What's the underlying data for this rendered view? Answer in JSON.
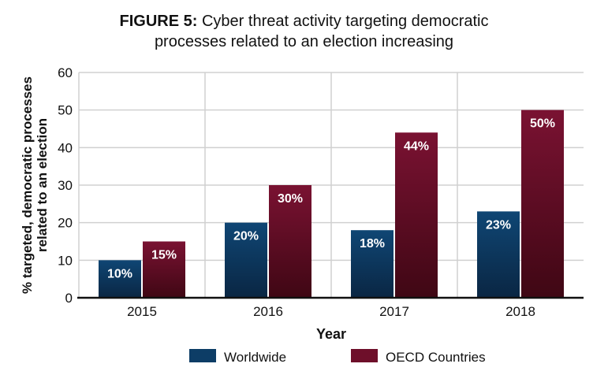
{
  "chart_data": {
    "type": "bar",
    "title_prefix": "FIGURE 5:",
    "title": "Cyber threat activity targeting democratic processes related to an election increasing",
    "title_line1": "Cyber threat activity targeting democratic",
    "title_line2": "processes related to an election increasing",
    "xlabel": "Year",
    "ylabel_line1": "% targeted, democratic processes",
    "ylabel_line2": "related to an election",
    "categories": [
      "2015",
      "2016",
      "2017",
      "2018"
    ],
    "ylim": [
      0,
      60
    ],
    "yticks": [
      0,
      10,
      20,
      30,
      40,
      50,
      60
    ],
    "grid": true,
    "legend_position": "bottom",
    "series": [
      {
        "name": "Worldwide",
        "values": [
          10,
          20,
          18,
          23
        ],
        "labels": [
          "10%",
          "20%",
          "18%",
          "23%"
        ],
        "color": "#0d3d66"
      },
      {
        "name": "OECD Countries",
        "values": [
          15,
          30,
          44,
          50
        ],
        "labels": [
          "15%",
          "30%",
          "44%",
          "50%"
        ],
        "color": "#6e0f2a"
      }
    ]
  }
}
